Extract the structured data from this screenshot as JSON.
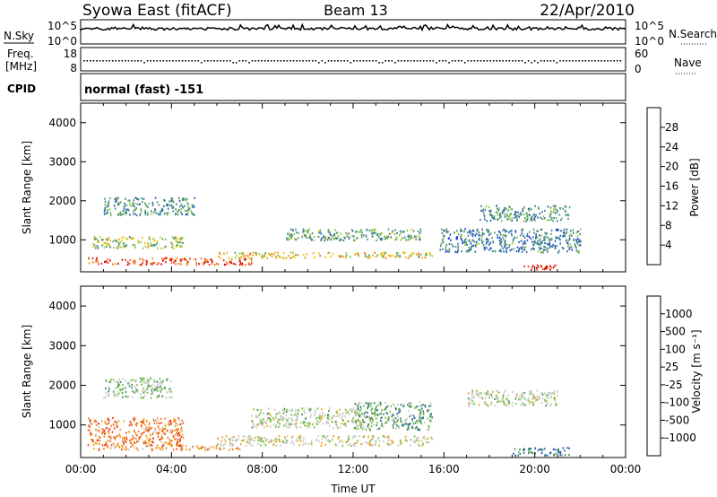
{
  "header": {
    "title": "Syowa East (fitACF)",
    "beam": "Beam 13",
    "date": "22/Apr/2010"
  },
  "top_panels": {
    "nsky_label": "N.Sky",
    "nsearch_label": "N.Search",
    "nsky_ticks": [
      "10^5",
      "10^0"
    ],
    "nsearch_ticks": [
      "10^5",
      "10^0"
    ],
    "freq_label": "Freq.",
    "freq_unit": "[MHz]",
    "freq_ticks": [
      "18",
      "8"
    ],
    "nave_label": "Nave",
    "nave_ticks": [
      "60",
      "0"
    ],
    "cpid_label": "CPID",
    "cpid_text": "normal (fast) -151"
  },
  "chart_data": [
    {
      "type": "heatmap",
      "name": "power",
      "xlabel": "",
      "ylabel": "Slant Range [km]",
      "x_ticks": [
        "00:00",
        "04:00",
        "08:00",
        "12:00",
        "16:00",
        "20:00",
        "00:00"
      ],
      "y_ticks": [
        1000,
        2000,
        3000,
        4000
      ],
      "ylim": [
        180,
        4500
      ],
      "colorbar": {
        "label": "Power [dB]",
        "ticks": [
          "4",
          "8",
          "12",
          "16",
          "20",
          "24",
          "28"
        ],
        "colors": [
          "#1f2fff",
          "#2a5fb8",
          "#3e7f8a",
          "#4e9a6a",
          "#8cc63f",
          "#f2c200",
          "#f39b1c",
          "#f26b1e",
          "#e52a12",
          "#d10000"
        ]
      },
      "bands": [
        {
          "t0": 0.5,
          "t1": 4.5,
          "r0": 800,
          "r1": 1100,
          "level": 0.45
        },
        {
          "t0": 0.3,
          "t1": 7.5,
          "r0": 380,
          "r1": 560,
          "level": 0.8
        },
        {
          "t0": 1.0,
          "t1": 5.0,
          "r0": 1650,
          "r1": 2100,
          "level": 0.3
        },
        {
          "t0": 6.0,
          "t1": 15.5,
          "r0": 550,
          "r1": 700,
          "level": 0.55
        },
        {
          "t0": 9.0,
          "t1": 15.0,
          "r0": 1000,
          "r1": 1300,
          "level": 0.35
        },
        {
          "t0": 17.5,
          "t1": 21.5,
          "r0": 1500,
          "r1": 1900,
          "level": 0.3
        },
        {
          "t0": 19.5,
          "t1": 21.0,
          "r0": 250,
          "r1": 400,
          "level": 0.9
        },
        {
          "t0": 15.8,
          "t1": 22.0,
          "r0": 700,
          "r1": 1300,
          "level": 0.25
        }
      ]
    },
    {
      "type": "heatmap",
      "name": "velocity",
      "xlabel": "Time UT",
      "ylabel": "Slant Range [km]",
      "x_ticks": [
        "00:00",
        "04:00",
        "08:00",
        "12:00",
        "16:00",
        "20:00",
        "00:00"
      ],
      "y_ticks": [
        1000,
        2000,
        3000,
        4000
      ],
      "ylim": [
        180,
        4500
      ],
      "colorbar": {
        "label": "Velocity [m s⁻¹]",
        "ticks": [
          "1000",
          "500",
          "100",
          "25",
          "-25",
          "-100",
          "-500",
          "-1000"
        ],
        "colors": [
          "#1b3fd6",
          "#2f6e9a",
          "#3f8f5a",
          "#77c23a",
          "#c8c8c4",
          "#c8c8c4",
          "#f2a21c",
          "#f07a1a",
          "#ee4a16",
          "#e01010"
        ]
      },
      "bands": [
        {
          "t0": 0.3,
          "t1": 4.5,
          "r0": 500,
          "r1": 1200,
          "level": 0.75
        },
        {
          "t0": 0.5,
          "t1": 7.0,
          "r0": 380,
          "r1": 500,
          "level": 0.65
        },
        {
          "t0": 7.5,
          "t1": 12.5,
          "r0": 950,
          "r1": 1450,
          "level": 0.45
        },
        {
          "t0": 12.0,
          "t1": 15.5,
          "r0": 900,
          "r1": 1600,
          "level": 0.3
        },
        {
          "t0": 6.0,
          "t1": 15.5,
          "r0": 500,
          "r1": 750,
          "level": 0.5
        },
        {
          "t0": 17.0,
          "t1": 21.0,
          "r0": 1500,
          "r1": 1900,
          "level": 0.45
        },
        {
          "t0": 19.0,
          "t1": 21.5,
          "r0": 250,
          "r1": 450,
          "level": 0.15
        },
        {
          "t0": 1.0,
          "t1": 4.0,
          "r0": 1700,
          "r1": 2200,
          "level": 0.4
        }
      ]
    }
  ]
}
